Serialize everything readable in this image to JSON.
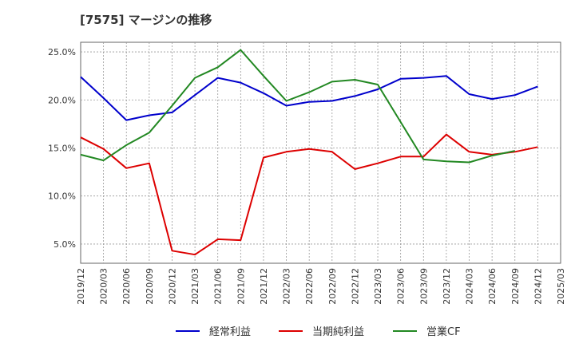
{
  "chart_data": {
    "type": "line",
    "title": "[7575]  マージンの推移",
    "xlabel": "",
    "ylabel": "",
    "ylim": [
      3.0,
      26.0
    ],
    "y_ticks": [
      "5.0%",
      "10.0%",
      "15.0%",
      "20.0%",
      "25.0%"
    ],
    "y_tick_values": [
      5,
      10,
      15,
      20,
      25
    ],
    "grid": true,
    "legend_position": "bottom",
    "categories": [
      "2019/12",
      "2020/03",
      "2020/06",
      "2020/09",
      "2020/12",
      "2021/03",
      "2021/06",
      "2021/09",
      "2021/12",
      "2022/03",
      "2022/06",
      "2022/09",
      "2022/12",
      "2023/03",
      "2023/06",
      "2023/09",
      "2023/12",
      "2024/03",
      "2024/06",
      "2024/09",
      "2024/12",
      "2025/03"
    ],
    "series": [
      {
        "name": "経常利益",
        "color": "#0000cc",
        "values": [
          22.4,
          20.2,
          17.9,
          18.4,
          18.7,
          20.5,
          22.3,
          21.8,
          20.7,
          19.4,
          19.8,
          19.9,
          20.4,
          21.1,
          22.2,
          22.3,
          22.5,
          20.6,
          20.1,
          20.5,
          21.4,
          null
        ]
      },
      {
        "name": "当期純利益",
        "color": "#dd0000",
        "values": [
          16.1,
          14.9,
          12.9,
          13.4,
          4.3,
          3.9,
          5.5,
          5.4,
          14.0,
          14.6,
          14.9,
          14.6,
          12.8,
          13.4,
          14.1,
          14.1,
          16.4,
          14.6,
          14.3,
          14.6,
          15.1,
          null
        ]
      },
      {
        "name": "営業CF",
        "color": "#228822",
        "values": [
          14.3,
          13.7,
          15.3,
          16.6,
          19.4,
          22.3,
          23.4,
          25.2,
          22.5,
          19.9,
          20.8,
          21.9,
          22.1,
          21.6,
          17.7,
          13.8,
          13.6,
          13.5,
          14.2,
          14.7,
          null,
          null
        ]
      }
    ]
  }
}
